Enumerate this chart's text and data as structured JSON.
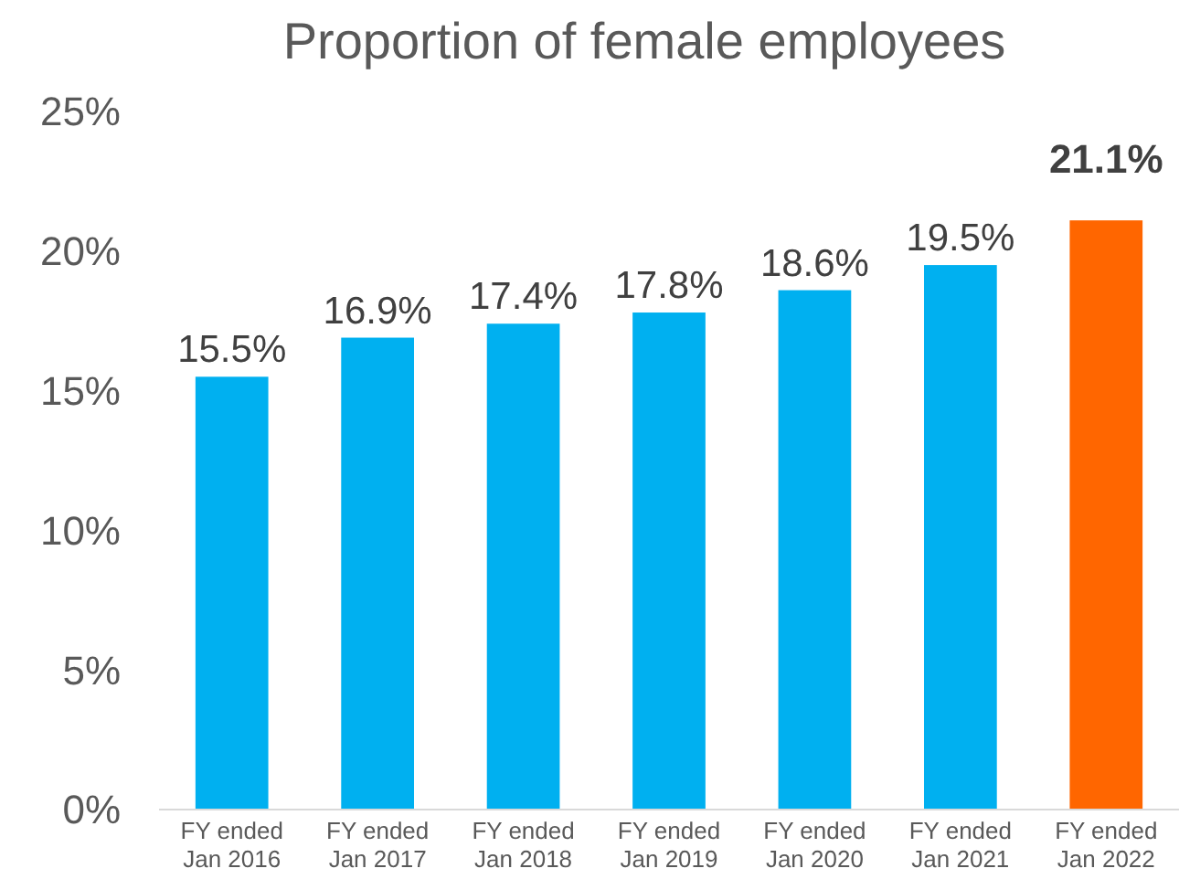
{
  "chart_data": {
    "type": "bar",
    "title": "Proportion of female employees",
    "categories": [
      "FY ended Jan 2016",
      "FY ended Jan 2017",
      "FY ended Jan 2018",
      "FY ended Jan 2019",
      "FY ended Jan 2020",
      "FY ended Jan 2021",
      "FY ended Jan 2022"
    ],
    "values": [
      15.5,
      16.9,
      17.4,
      17.8,
      18.6,
      19.5,
      21.1
    ],
    "colors": [
      "#00b0f0",
      "#00b0f0",
      "#00b0f0",
      "#00b0f0",
      "#00b0f0",
      "#00b0f0",
      "#ff6600"
    ],
    "value_labels": [
      "15.5%",
      "16.9%",
      "17.4%",
      "17.8%",
      "18.6%",
      "19.5%",
      "21.1%"
    ],
    "ylim": [
      0,
      25
    ],
    "yticks": [
      {
        "value": 0,
        "label": "0%"
      },
      {
        "value": 5,
        "label": "5%"
      },
      {
        "value": 10,
        "label": "10%"
      },
      {
        "value": 15,
        "label": "15%"
      },
      {
        "value": 20,
        "label": "20%"
      },
      {
        "value": 25,
        "label": "25%"
      }
    ],
    "grid": false
  }
}
